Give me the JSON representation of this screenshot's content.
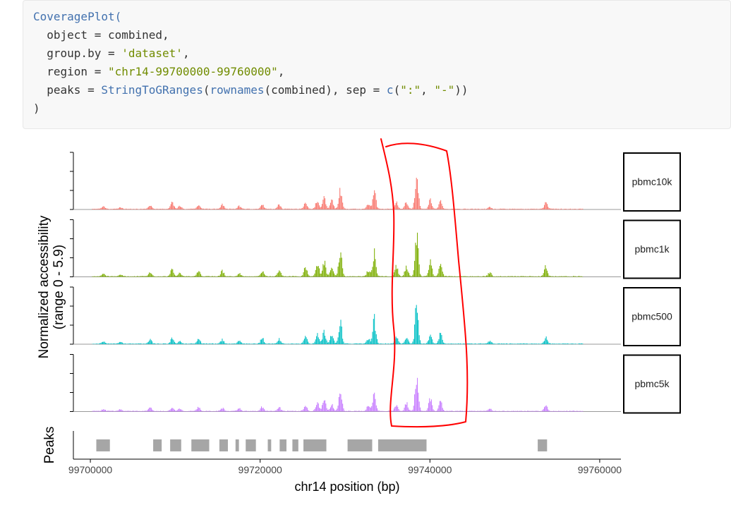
{
  "code": {
    "lines": [
      [
        {
          "t": "CoveragePlot(",
          "c": "fn"
        }
      ],
      [
        {
          "t": "  object = combined,",
          "c": "plain"
        }
      ],
      [
        {
          "t": "  group.by = ",
          "c": "plain"
        },
        {
          "t": "'dataset'",
          "c": "str"
        },
        {
          "t": ",",
          "c": "plain"
        }
      ],
      [
        {
          "t": "  region = ",
          "c": "plain"
        },
        {
          "t": "\"chr14-99700000-99760000\"",
          "c": "str"
        },
        {
          "t": ",",
          "c": "plain"
        }
      ],
      [
        {
          "t": "  peaks = ",
          "c": "plain"
        },
        {
          "t": "StringToGRanges",
          "c": "fn"
        },
        {
          "t": "(",
          "c": "plain"
        },
        {
          "t": "rownames",
          "c": "fn"
        },
        {
          "t": "(combined), sep = ",
          "c": "plain"
        },
        {
          "t": "c",
          "c": "fn"
        },
        {
          "t": "(",
          "c": "plain"
        },
        {
          "t": "\":\"",
          "c": "str"
        },
        {
          "t": ", ",
          "c": "plain"
        },
        {
          "t": "\"-\"",
          "c": "str"
        },
        {
          "t": "))",
          "c": "plain"
        }
      ],
      [
        {
          "t": ")",
          "c": "plain"
        }
      ]
    ]
  },
  "chart_data": {
    "type": "area",
    "xlabel": "chr14 position (bp)",
    "ylabel": "Normalized accessibility",
    "ylabel_line2": "(range 0 - 5.9)",
    "xlim": [
      99698000,
      99762500
    ],
    "ylim": [
      0,
      5.9
    ],
    "xticks": [
      99700000,
      99720000,
      99740000,
      99760000
    ],
    "peaks_label": "Peaks",
    "series": [
      {
        "name": "pbmc10k",
        "color": "#F8766D",
        "profile": [
          [
            99701500,
            0.3
          ],
          [
            99703500,
            0.25
          ],
          [
            99707000,
            0.5
          ],
          [
            99709600,
            0.8
          ],
          [
            99710500,
            0.35
          ],
          [
            99712700,
            0.6
          ],
          [
            99715500,
            0.55
          ],
          [
            99717500,
            0.4
          ],
          [
            99720200,
            0.55
          ],
          [
            99722200,
            0.55
          ],
          [
            99725300,
            0.85
          ],
          [
            99726700,
            1.2
          ],
          [
            99727500,
            1.4
          ],
          [
            99728400,
            1.1
          ],
          [
            99729400,
            2.4
          ],
          [
            99732700,
            0.6
          ],
          [
            99733400,
            2.4
          ],
          [
            99736000,
            0.9
          ],
          [
            99737200,
            0.9
          ],
          [
            99738400,
            4.4
          ],
          [
            99740000,
            1.2
          ],
          [
            99741200,
            1.0
          ],
          [
            99747000,
            0.35
          ],
          [
            99753600,
            0.8
          ]
        ]
      },
      {
        "name": "pbmc1k",
        "color": "#7CAE00",
        "profile": [
          [
            99701500,
            0.3
          ],
          [
            99703500,
            0.3
          ],
          [
            99707000,
            0.6
          ],
          [
            99709600,
            1.0
          ],
          [
            99710500,
            0.4
          ],
          [
            99712700,
            0.7
          ],
          [
            99715500,
            0.7
          ],
          [
            99717500,
            0.4
          ],
          [
            99720200,
            0.7
          ],
          [
            99722200,
            0.8
          ],
          [
            99725300,
            1.3
          ],
          [
            99726700,
            1.7
          ],
          [
            99727500,
            1.9
          ],
          [
            99728400,
            1.5
          ],
          [
            99729400,
            3.2
          ],
          [
            99732700,
            0.8
          ],
          [
            99733400,
            3.0
          ],
          [
            99736000,
            1.2
          ],
          [
            99737200,
            1.3
          ],
          [
            99738400,
            5.6
          ],
          [
            99740000,
            1.9
          ],
          [
            99741200,
            1.6
          ],
          [
            99747000,
            0.5
          ],
          [
            99753600,
            1.2
          ]
        ]
      },
      {
        "name": "pbmc500",
        "color": "#00BFC4",
        "profile": [
          [
            99701500,
            0.3
          ],
          [
            99703500,
            0.25
          ],
          [
            99707000,
            0.5
          ],
          [
            99709600,
            0.7
          ],
          [
            99710500,
            0.3
          ],
          [
            99712700,
            0.6
          ],
          [
            99715500,
            0.5
          ],
          [
            99717500,
            0.4
          ],
          [
            99720200,
            0.8
          ],
          [
            99722200,
            0.6
          ],
          [
            99725300,
            1.0
          ],
          [
            99726700,
            1.3
          ],
          [
            99727500,
            1.6
          ],
          [
            99728400,
            1.2
          ],
          [
            99729400,
            2.7
          ],
          [
            99732700,
            0.7
          ],
          [
            99733400,
            3.1
          ],
          [
            99736000,
            0.9
          ],
          [
            99737200,
            0.9
          ],
          [
            99738400,
            5.4
          ],
          [
            99740000,
            1.1
          ],
          [
            99741200,
            1.4
          ],
          [
            99747000,
            0.4
          ],
          [
            99753600,
            0.8
          ]
        ]
      },
      {
        "name": "pbmc5k",
        "color": "#C77CFF",
        "profile": [
          [
            99701500,
            0.25
          ],
          [
            99703500,
            0.25
          ],
          [
            99707000,
            0.4
          ],
          [
            99709600,
            0.5
          ],
          [
            99710500,
            0.3
          ],
          [
            99712700,
            0.45
          ],
          [
            99715500,
            0.4
          ],
          [
            99717500,
            0.35
          ],
          [
            99720200,
            0.5
          ],
          [
            99722200,
            0.45
          ],
          [
            99725300,
            0.8
          ],
          [
            99726700,
            1.1
          ],
          [
            99727500,
            1.5
          ],
          [
            99728400,
            0.8
          ],
          [
            99729400,
            2.5
          ],
          [
            99732700,
            0.6
          ],
          [
            99733400,
            2.1
          ],
          [
            99736000,
            0.8
          ],
          [
            99737200,
            1.0
          ],
          [
            99738400,
            4.3
          ],
          [
            99740000,
            1.6
          ],
          [
            99741200,
            1.2
          ],
          [
            99747000,
            0.35
          ],
          [
            99753600,
            0.8
          ]
        ]
      }
    ],
    "peaks": [
      [
        99700700,
        99702300
      ],
      [
        99707400,
        99708400
      ],
      [
        99709400,
        99710700
      ],
      [
        99711900,
        99714000
      ],
      [
        99715200,
        99716200
      ],
      [
        99717100,
        99717500
      ],
      [
        99718300,
        99719500
      ],
      [
        99720900,
        99721300
      ],
      [
        99722300,
        99723100
      ],
      [
        99723800,
        99724500
      ],
      [
        99725100,
        99727800
      ],
      [
        99730300,
        99733200
      ],
      [
        99733900,
        99739600
      ],
      [
        99752700,
        99753800
      ]
    ],
    "annotation_color": "#ff0000"
  }
}
